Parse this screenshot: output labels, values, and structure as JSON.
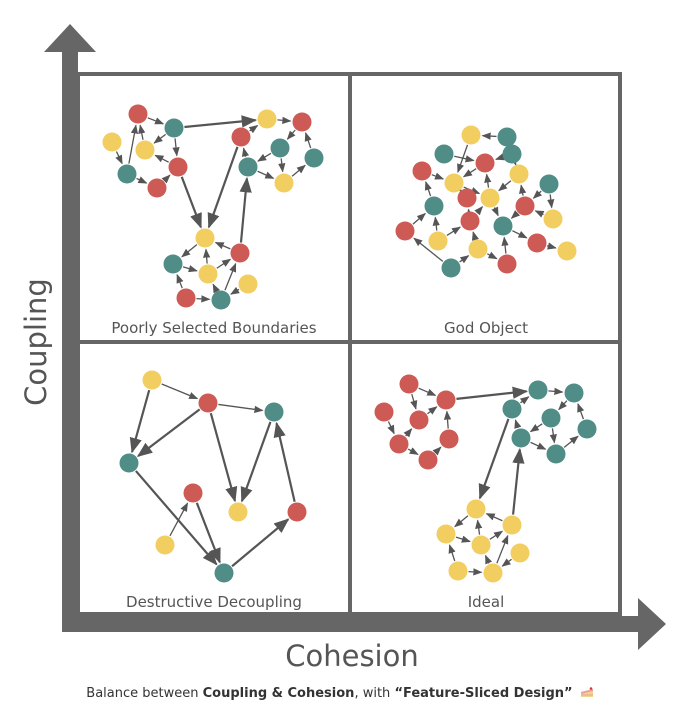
{
  "axes": {
    "y_label": "Coupling",
    "x_label": "Cohesion"
  },
  "colors": {
    "axis": "#666666",
    "red": "#cd5a55",
    "teal": "#4f8d86",
    "yellow": "#f2cd60",
    "edge": "#555555",
    "frame": "#666666"
  },
  "quadrants": [
    {
      "id": "top-left",
      "label": "Poorly Selected Boundaries"
    },
    {
      "id": "top-right",
      "label": "God Object"
    },
    {
      "id": "bottom-left",
      "label": "Destructive Decoupling"
    },
    {
      "id": "bottom-right",
      "label": "Ideal"
    }
  ],
  "caption": {
    "prefix": "Balance between ",
    "emph1": "Coupling & Cohesion",
    "middle": ", with ",
    "emph2": "“Feature-Sliced Design”",
    "icon": "cake-icon"
  }
}
